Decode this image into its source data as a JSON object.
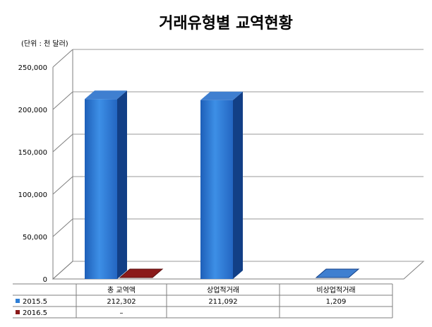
{
  "chart_data": {
    "type": "bar",
    "title": "거래유형별 교역현황",
    "unit_label": "(단위 : 천 달러)",
    "categories": [
      "총 교역액",
      "상업적거래",
      "비상업적거래"
    ],
    "series": [
      {
        "name": "2015.5",
        "values": [
          212302,
          211092,
          1209
        ],
        "labels": [
          "212,302",
          "211,092",
          "1,209"
        ],
        "color": "#2f7fd6"
      },
      {
        "name": "2016.5",
        "values": [
          0,
          null,
          null
        ],
        "labels": [
          "–",
          "",
          ""
        ],
        "color": "#8b1a1a"
      }
    ],
    "y_ticks": [
      "0",
      "50,000",
      "100,000",
      "150,000",
      "200,000",
      "250,000"
    ],
    "ylim": [
      0,
      250000
    ],
    "grid": true,
    "legend": "data-table"
  }
}
